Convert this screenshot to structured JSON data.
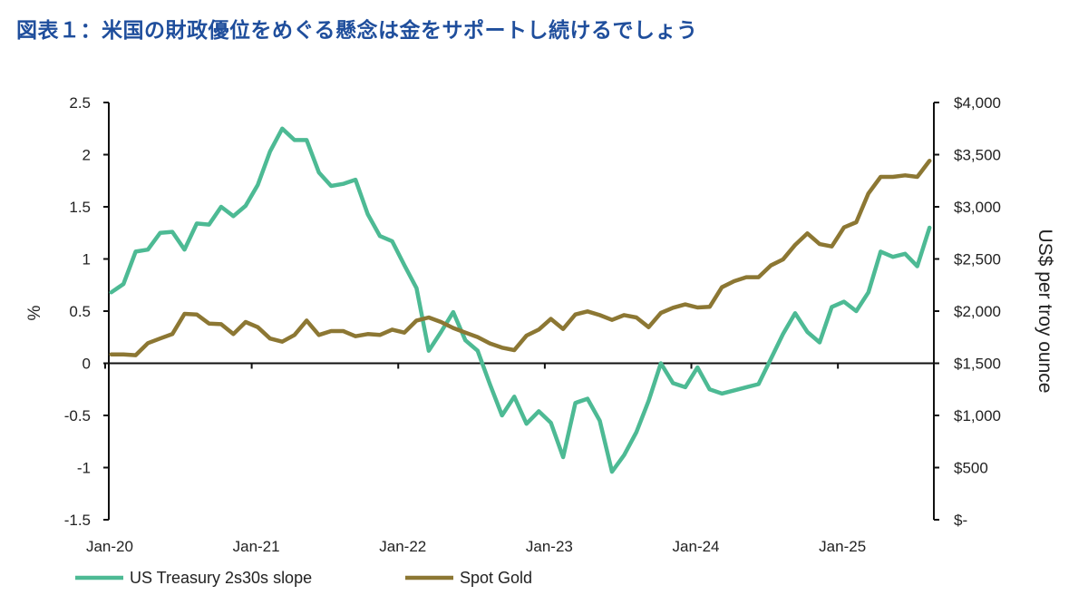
{
  "title": "図表１：米国の財政優位をめぐる懸念は金をサポートし続けるでしょう",
  "chart_data": {
    "type": "line",
    "title": "図表１：米国の財政優位をめぐる懸念は金をサポートし続けるでしょう",
    "xlabel": "",
    "ylabel_left": "%",
    "ylabel_right": "US$ per troy ounce",
    "x_start": "Jan-20",
    "x_end": "Aug-25",
    "frequency": "monthly",
    "x_tick_labels": [
      "Jan-20",
      "Jan-21",
      "Jan-22",
      "Jan-23",
      "Jan-24",
      "Jan-25"
    ],
    "ylim_left": [
      -1.5,
      2.5
    ],
    "yticks_left": [
      "2.5",
      "2",
      "1.5",
      "1",
      "0.5",
      "0",
      "-0.5",
      "-1",
      "-1.5"
    ],
    "ylim_right": [
      0,
      4000
    ],
    "yticks_right": [
      "$4,000",
      "$3,500",
      "$3,000",
      "$2,500",
      "$2,000",
      "$1,500",
      "$1,000",
      "$500",
      "$-"
    ],
    "grid": false,
    "legend_placement": "bottom",
    "series": [
      {
        "name": "US Treasury 2s30s slope",
        "axis": "left",
        "color": "#4dba94",
        "values": [
          0.68,
          0.76,
          1.07,
          1.09,
          1.25,
          1.26,
          1.09,
          1.34,
          1.33,
          1.5,
          1.41,
          1.51,
          1.71,
          2.03,
          2.25,
          2.14,
          2.14,
          1.83,
          1.7,
          1.72,
          1.76,
          1.43,
          1.22,
          1.17,
          0.94,
          0.72,
          0.12,
          0.3,
          0.49,
          0.22,
          0.12,
          -0.2,
          -0.5,
          -0.32,
          -0.58,
          -0.46,
          -0.57,
          -0.9,
          -0.38,
          -0.34,
          -0.55,
          -1.04,
          -0.88,
          -0.66,
          -0.36,
          0.0,
          -0.19,
          -0.23,
          -0.04,
          -0.25,
          -0.29,
          -0.26,
          -0.23,
          -0.2,
          0.04,
          0.28,
          0.48,
          0.3,
          0.2,
          0.54,
          0.59,
          0.5,
          0.68,
          1.07,
          1.02,
          1.05,
          0.93,
          1.3
        ]
      },
      {
        "name": "Spot Gold",
        "axis": "right",
        "color": "#8c7733",
        "values": [
          1585,
          1585,
          1577,
          1693,
          1737,
          1780,
          1974,
          1968,
          1881,
          1875,
          1780,
          1896,
          1846,
          1737,
          1707,
          1771,
          1910,
          1771,
          1809,
          1809,
          1759,
          1780,
          1771,
          1823,
          1794,
          1910,
          1939,
          1896,
          1838,
          1794,
          1751,
          1690,
          1650,
          1626,
          1765,
          1823,
          1925,
          1829,
          1968,
          1997,
          1962,
          1916,
          1962,
          1939,
          1846,
          1983,
          2032,
          2064,
          2035,
          2041,
          2229,
          2287,
          2325,
          2325,
          2437,
          2496,
          2635,
          2745,
          2643,
          2620,
          2803,
          2852,
          3128,
          3287,
          3287,
          3302,
          3287,
          3441
        ]
      }
    ]
  }
}
